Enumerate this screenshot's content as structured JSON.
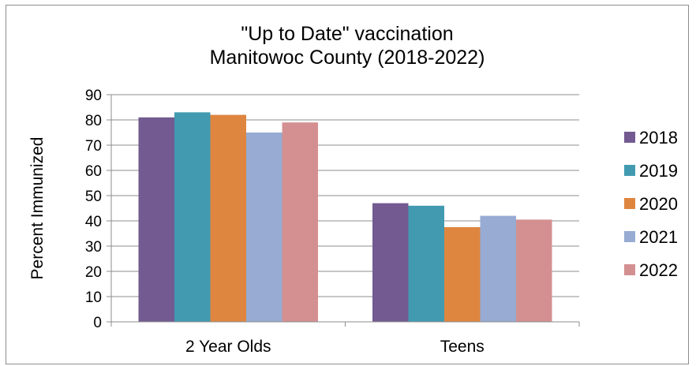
{
  "chart_data": {
    "type": "bar",
    "title_lines": [
      "\"Up to Date\" vaccination",
      "Manitowoc County (2018-2022)"
    ],
    "xlabel": "",
    "ylabel": "Percent Immunized",
    "ylim": [
      0,
      90
    ],
    "yticks": [
      0,
      10,
      20,
      30,
      40,
      50,
      60,
      70,
      80,
      90
    ],
    "grid": true,
    "legend_position": "right",
    "categories": [
      "2 Year Olds",
      "Teens"
    ],
    "series": [
      {
        "name": "2018",
        "color": "#735A91",
        "values": [
          81,
          47
        ]
      },
      {
        "name": "2019",
        "color": "#419AB0",
        "values": [
          83,
          46
        ]
      },
      {
        "name": "2020",
        "color": "#DE8640",
        "values": [
          82,
          37.5
        ]
      },
      {
        "name": "2021",
        "color": "#97ABD3",
        "values": [
          75,
          42
        ]
      },
      {
        "name": "2022",
        "color": "#D49091",
        "values": [
          79,
          40.5
        ]
      }
    ]
  }
}
